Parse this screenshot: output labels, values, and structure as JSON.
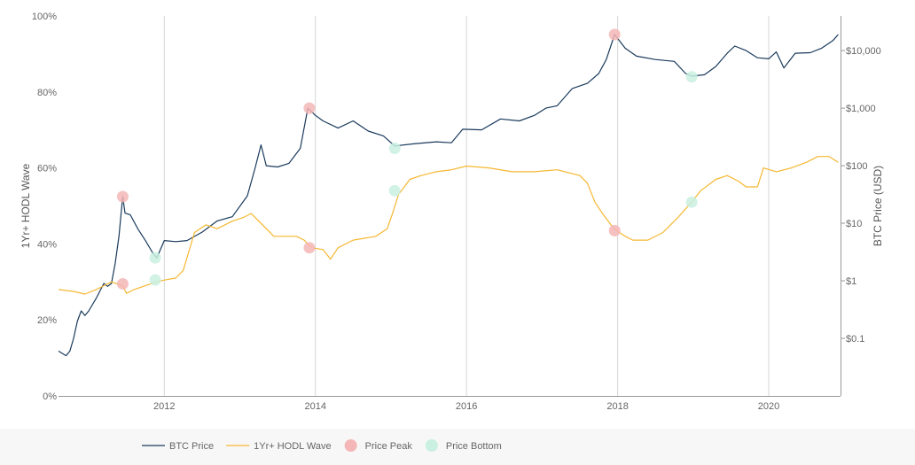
{
  "chart_data": {
    "type": "line",
    "x_domain": [
      2010.6,
      2020.95
    ],
    "x_ticks": [
      2012,
      2014,
      2016,
      2018,
      2020
    ],
    "x_tick_labels": [
      "2012",
      "2014",
      "2016",
      "2018",
      "2020"
    ],
    "y_left": {
      "label": "1Yr+ HODL Wave",
      "range": [
        0,
        100
      ],
      "ticks": [
        0,
        20,
        40,
        60,
        80,
        100
      ],
      "tick_labels": [
        "0%",
        "20%",
        "40%",
        "60%",
        "80%",
        "100%"
      ]
    },
    "y_right": {
      "label": "BTC Price (USD)",
      "scale": "log",
      "range": [
        0.01,
        40000
      ],
      "ticks": [
        0.1,
        1,
        10,
        100,
        1000,
        10000
      ],
      "tick_labels": [
        "$0.1",
        "$1",
        "$10",
        "$100",
        "$1,000",
        "$10,000"
      ]
    },
    "grid": "vertical",
    "legend_position": "bottom",
    "series": [
      {
        "name": "BTC Price",
        "axis": "right",
        "color": "#1a3a5c",
        "points": [
          [
            2010.6,
            0.06
          ],
          [
            2010.7,
            0.05
          ],
          [
            2010.75,
            0.06
          ],
          [
            2010.8,
            0.1
          ],
          [
            2010.85,
            0.2
          ],
          [
            2010.9,
            0.3
          ],
          [
            2010.95,
            0.25
          ],
          [
            2011.0,
            0.3
          ],
          [
            2011.1,
            0.5
          ],
          [
            2011.2,
            0.9
          ],
          [
            2011.25,
            0.8
          ],
          [
            2011.3,
            0.9
          ],
          [
            2011.35,
            2.0
          ],
          [
            2011.4,
            6.0
          ],
          [
            2011.45,
            29.0
          ],
          [
            2011.48,
            15.0
          ],
          [
            2011.55,
            14.0
          ],
          [
            2011.65,
            8.0
          ],
          [
            2011.75,
            5.0
          ],
          [
            2011.85,
            3.0
          ],
          [
            2011.9,
            2.5
          ],
          [
            2012.0,
            5.0
          ],
          [
            2012.15,
            4.8
          ],
          [
            2012.3,
            5.0
          ],
          [
            2012.5,
            7.0
          ],
          [
            2012.7,
            11.0
          ],
          [
            2012.9,
            13.0
          ],
          [
            2013.1,
            30.0
          ],
          [
            2013.2,
            90.0
          ],
          [
            2013.28,
            230.0
          ],
          [
            2013.35,
            100.0
          ],
          [
            2013.5,
            95.0
          ],
          [
            2013.65,
            110.0
          ],
          [
            2013.8,
            200.0
          ],
          [
            2013.9,
            1000.0
          ],
          [
            2014.0,
            750.0
          ],
          [
            2014.1,
            600.0
          ],
          [
            2014.3,
            450.0
          ],
          [
            2014.5,
            600.0
          ],
          [
            2014.7,
            400.0
          ],
          [
            2014.9,
            330.0
          ],
          [
            2015.05,
            220.0
          ],
          [
            2015.3,
            240.0
          ],
          [
            2015.6,
            260.0
          ],
          [
            2015.8,
            250.0
          ],
          [
            2015.95,
            430.0
          ],
          [
            2016.2,
            420.0
          ],
          [
            2016.45,
            650.0
          ],
          [
            2016.7,
            600.0
          ],
          [
            2016.9,
            750.0
          ],
          [
            2017.05,
            1000.0
          ],
          [
            2017.2,
            1100.0
          ],
          [
            2017.4,
            2200.0
          ],
          [
            2017.6,
            2700.0
          ],
          [
            2017.75,
            4000.0
          ],
          [
            2017.85,
            7000.0
          ],
          [
            2017.96,
            19000.0
          ],
          [
            2018.1,
            11000.0
          ],
          [
            2018.25,
            8000.0
          ],
          [
            2018.5,
            7000.0
          ],
          [
            2018.75,
            6500.0
          ],
          [
            2018.9,
            4000.0
          ],
          [
            2018.98,
            3600.0
          ],
          [
            2019.15,
            3800.0
          ],
          [
            2019.3,
            5300.0
          ],
          [
            2019.45,
            9000.0
          ],
          [
            2019.55,
            12000.0
          ],
          [
            2019.7,
            10000.0
          ],
          [
            2019.85,
            7500.0
          ],
          [
            2020.0,
            7200.0
          ],
          [
            2020.1,
            9500.0
          ],
          [
            2020.2,
            5000.0
          ],
          [
            2020.35,
            9000.0
          ],
          [
            2020.55,
            9200.0
          ],
          [
            2020.7,
            11000.0
          ],
          [
            2020.85,
            15000.0
          ],
          [
            2020.92,
            19000.0
          ]
        ]
      },
      {
        "name": "1Yr+ HODL Wave",
        "axis": "left",
        "color": "#f5b731",
        "points": [
          [
            2010.6,
            28.0
          ],
          [
            2010.8,
            27.5
          ],
          [
            2010.95,
            26.8
          ],
          [
            2011.1,
            28.0
          ],
          [
            2011.3,
            30.0
          ],
          [
            2011.45,
            29.0
          ],
          [
            2011.5,
            27.0
          ],
          [
            2011.6,
            28.0
          ],
          [
            2011.75,
            29.0
          ],
          [
            2011.9,
            30.0
          ],
          [
            2012.0,
            30.5
          ],
          [
            2012.15,
            31.0
          ],
          [
            2012.25,
            33.0
          ],
          [
            2012.4,
            43.0
          ],
          [
            2012.55,
            45.0
          ],
          [
            2012.7,
            44.0
          ],
          [
            2012.9,
            46.0
          ],
          [
            2013.05,
            47.0
          ],
          [
            2013.15,
            48.0
          ],
          [
            2013.3,
            45.0
          ],
          [
            2013.45,
            42.0
          ],
          [
            2013.6,
            42.0
          ],
          [
            2013.75,
            42.0
          ],
          [
            2013.85,
            41.0
          ],
          [
            2013.95,
            39.0
          ],
          [
            2014.1,
            38.5
          ],
          [
            2014.2,
            36.0
          ],
          [
            2014.3,
            39.0
          ],
          [
            2014.5,
            41.0
          ],
          [
            2014.8,
            42.0
          ],
          [
            2014.95,
            44.0
          ],
          [
            2015.02,
            48.0
          ],
          [
            2015.1,
            53.0
          ],
          [
            2015.25,
            57.0
          ],
          [
            2015.4,
            58.0
          ],
          [
            2015.6,
            59.0
          ],
          [
            2015.8,
            59.5
          ],
          [
            2016.0,
            60.5
          ],
          [
            2016.3,
            60.0
          ],
          [
            2016.6,
            59.0
          ],
          [
            2016.9,
            59.0
          ],
          [
            2017.2,
            59.5
          ],
          [
            2017.5,
            58.0
          ],
          [
            2017.6,
            56.0
          ],
          [
            2017.7,
            51.0
          ],
          [
            2017.8,
            48.0
          ],
          [
            2017.95,
            44.0
          ],
          [
            2018.1,
            42.0
          ],
          [
            2018.2,
            41.0
          ],
          [
            2018.4,
            41.0
          ],
          [
            2018.6,
            43.0
          ],
          [
            2018.8,
            47.0
          ],
          [
            2018.98,
            51.0
          ],
          [
            2019.1,
            54.0
          ],
          [
            2019.3,
            57.0
          ],
          [
            2019.45,
            58.0
          ],
          [
            2019.6,
            56.5
          ],
          [
            2019.7,
            55.0
          ],
          [
            2019.85,
            55.0
          ],
          [
            2019.93,
            60.0
          ],
          [
            2020.1,
            59.0
          ],
          [
            2020.3,
            60.0
          ],
          [
            2020.5,
            61.5
          ],
          [
            2020.65,
            63.0
          ],
          [
            2020.8,
            63.0
          ],
          [
            2020.92,
            61.5
          ]
        ]
      }
    ],
    "markers": [
      {
        "name": "Price Peak",
        "color": "#f4b6b6",
        "points": [
          {
            "x": 2011.45,
            "axis": "right",
            "y": 29.0
          },
          {
            "x": 2013.92,
            "axis": "right",
            "y": 1000.0
          },
          {
            "x": 2017.96,
            "axis": "right",
            "y": 19000.0
          },
          {
            "x": 2011.45,
            "axis": "left",
            "y": 29.5
          },
          {
            "x": 2013.92,
            "axis": "left",
            "y": 39.0
          },
          {
            "x": 2017.96,
            "axis": "left",
            "y": 43.5
          }
        ]
      },
      {
        "name": "Price Bottom",
        "color": "#c9f0e1",
        "points": [
          {
            "x": 2011.88,
            "axis": "right",
            "y": 2.5
          },
          {
            "x": 2015.05,
            "axis": "right",
            "y": 200.0
          },
          {
            "x": 2018.98,
            "axis": "right",
            "y": 3500.0
          },
          {
            "x": 2011.88,
            "axis": "left",
            "y": 30.5
          },
          {
            "x": 2015.05,
            "axis": "left",
            "y": 54.0
          },
          {
            "x": 2018.98,
            "axis": "left",
            "y": 51.0
          }
        ]
      }
    ]
  },
  "legend": {
    "items": [
      {
        "label": "BTC Price",
        "kind": "line",
        "color": "#1a3a5c"
      },
      {
        "label": "1Yr+ HODL Wave",
        "kind": "line",
        "color": "#f5b731"
      },
      {
        "label": "Price Peak",
        "kind": "dot",
        "color": "#f4b6b6"
      },
      {
        "label": "Price Bottom",
        "kind": "dot",
        "color": "#c9f0e1"
      }
    ]
  }
}
